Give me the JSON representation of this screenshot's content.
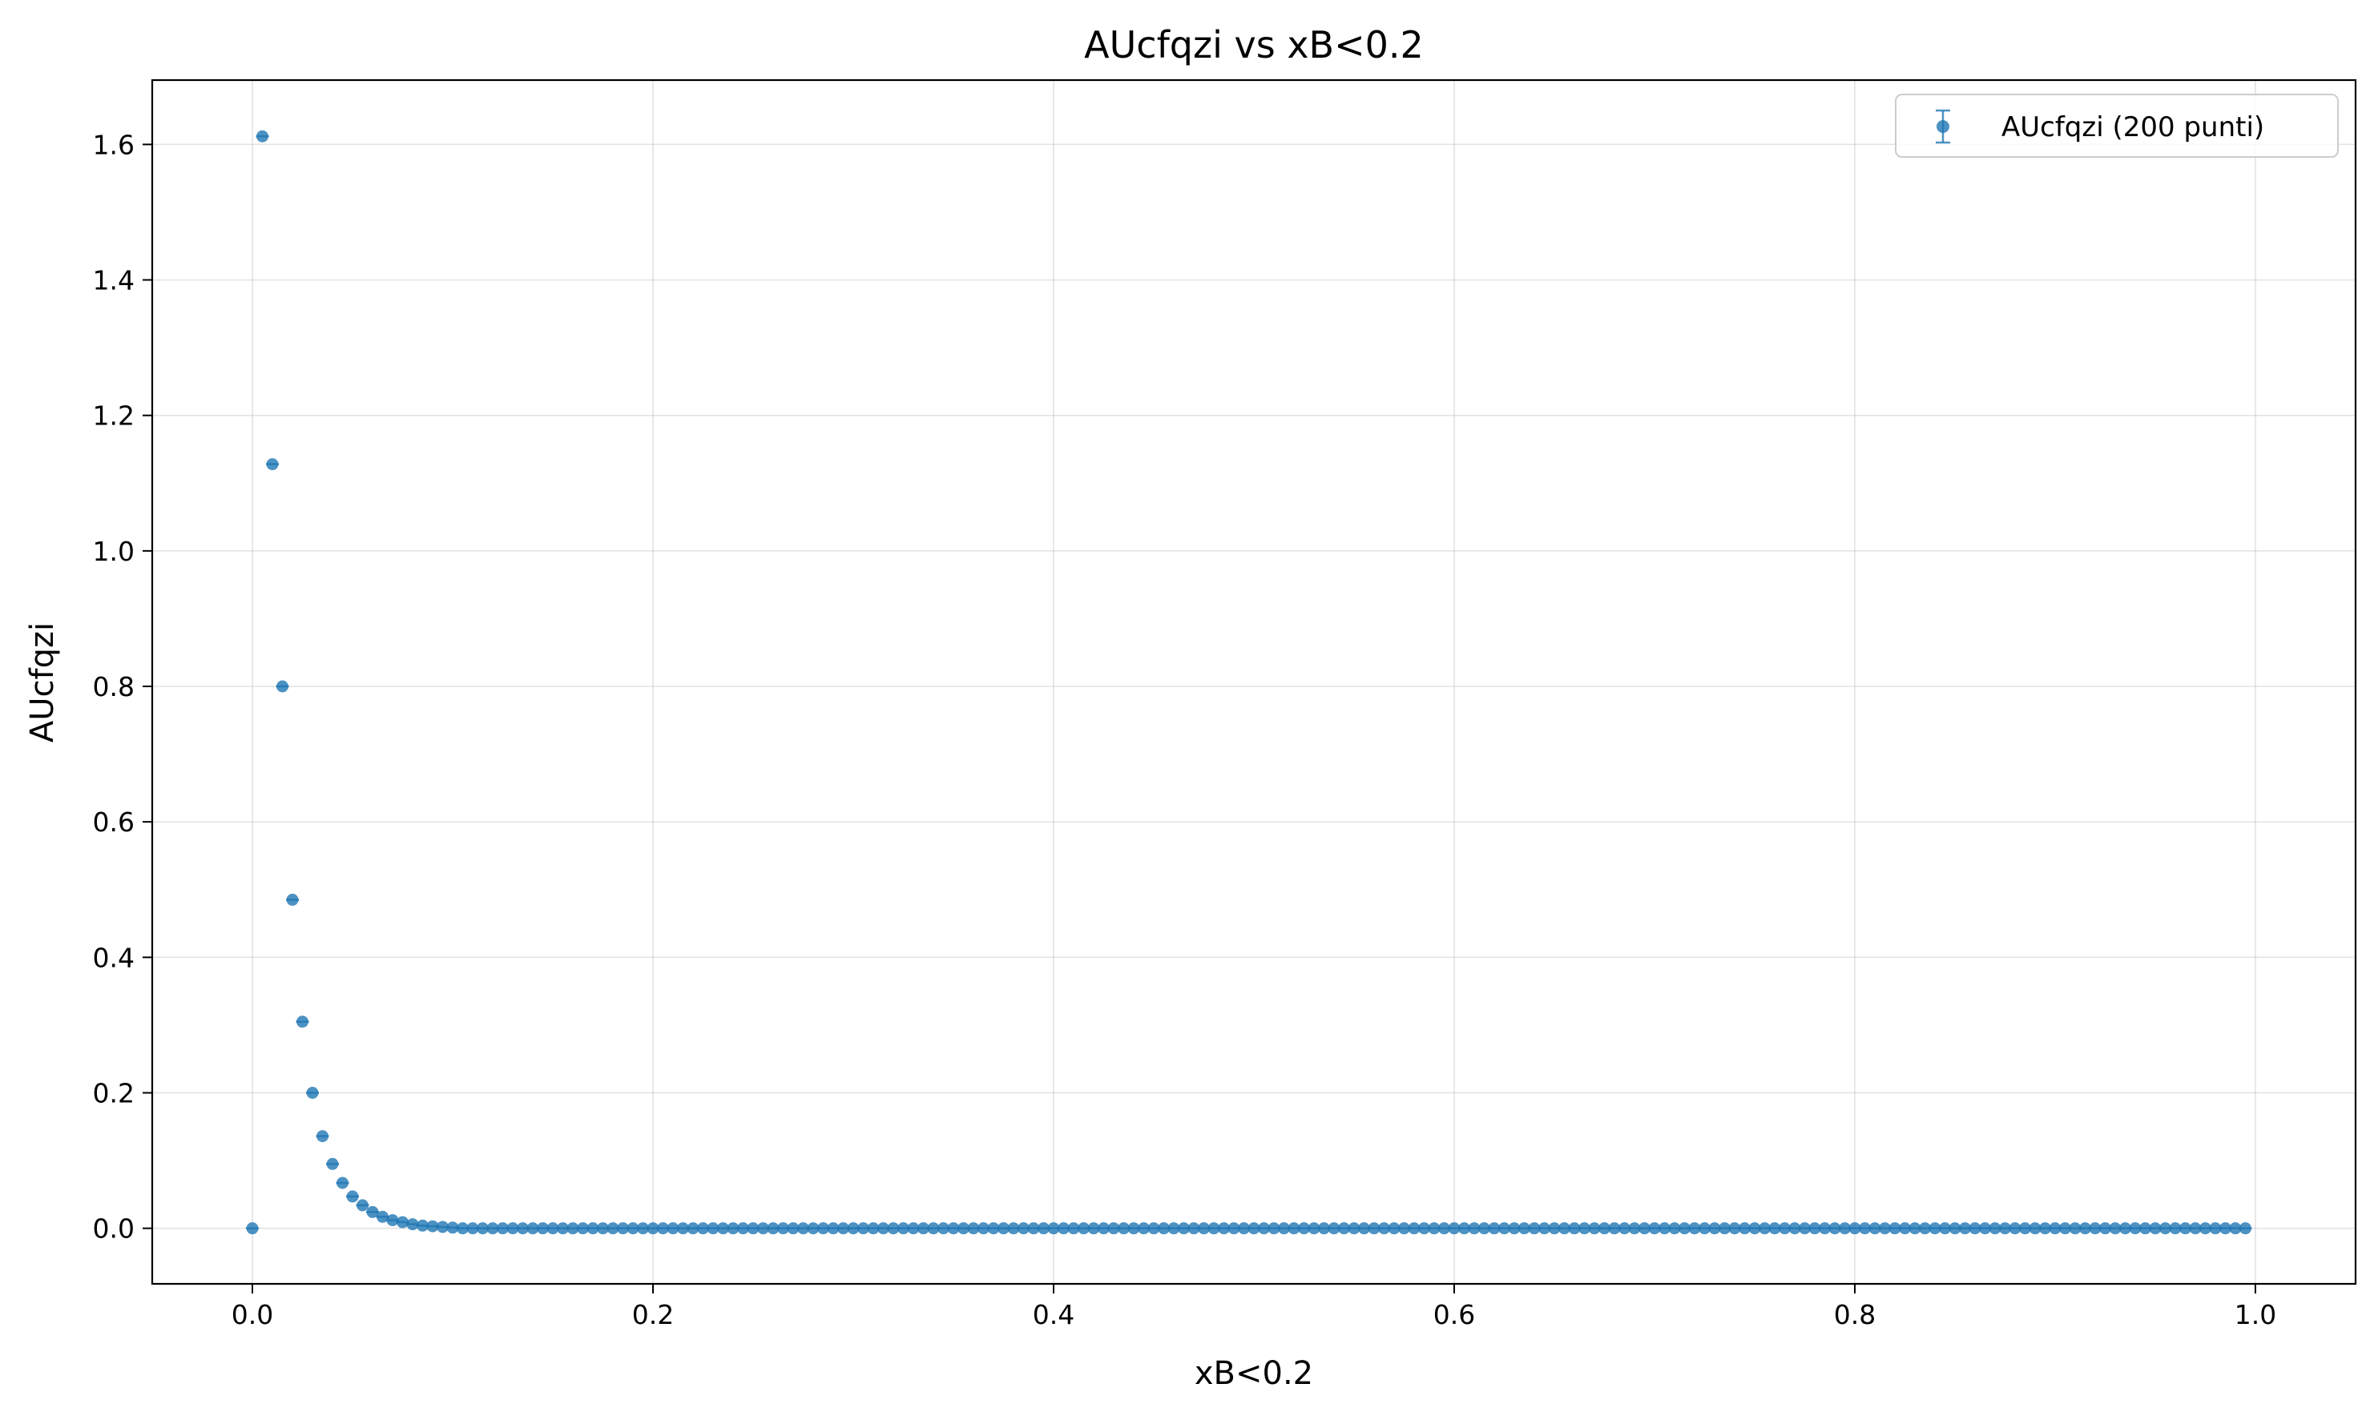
{
  "chart_data": {
    "type": "scatter",
    "title": "AUcfqzi vs xB<0.2",
    "xlabel": "xB<0.2",
    "ylabel": "AUcfqzi",
    "xlim": [
      -0.05,
      1.05
    ],
    "ylim": [
      -0.082,
      1.695
    ],
    "xticks": [
      0.0,
      0.2,
      0.4,
      0.6,
      0.8,
      1.0
    ],
    "xtick_labels": [
      "0.0",
      "0.2",
      "0.4",
      "0.6",
      "0.8",
      "1.0"
    ],
    "yticks": [
      0.0,
      0.2,
      0.4,
      0.6,
      0.8,
      1.0,
      1.2,
      1.4,
      1.6
    ],
    "ytick_labels": [
      "0.0",
      "0.2",
      "0.4",
      "0.6",
      "0.8",
      "1.0",
      "1.2",
      "1.4",
      "1.6"
    ],
    "grid": true,
    "legend_position": "top-right",
    "errorbars": true,
    "series": [
      {
        "name": "AUcfqzi (200 punti)",
        "color": "#1f77b4",
        "point_count": 200,
        "x_start": 0.0,
        "x_step": 0.005,
        "leading_points": [
          [
            0.0,
            0.0
          ],
          [
            0.005,
            1.612
          ],
          [
            0.01,
            1.128
          ],
          [
            0.015,
            0.8
          ],
          [
            0.02,
            0.485
          ],
          [
            0.025,
            0.305
          ],
          [
            0.03,
            0.2
          ],
          [
            0.035,
            0.136
          ],
          [
            0.04,
            0.095
          ],
          [
            0.045,
            0.067
          ],
          [
            0.05,
            0.047
          ],
          [
            0.055,
            0.034
          ],
          [
            0.06,
            0.024
          ],
          [
            0.065,
            0.017
          ],
          [
            0.07,
            0.012
          ],
          [
            0.075,
            0.009
          ],
          [
            0.08,
            0.006
          ],
          [
            0.085,
            0.004
          ],
          [
            0.09,
            0.003
          ],
          [
            0.095,
            0.002
          ],
          [
            0.1,
            0.001
          ]
        ],
        "remaining_value": 0.0
      }
    ]
  }
}
